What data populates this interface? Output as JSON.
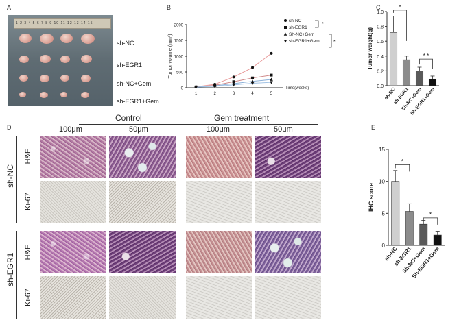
{
  "panels": {
    "A": "A",
    "B": "B",
    "C": "C",
    "D": "D",
    "E": "E"
  },
  "photo": {
    "ruler_text": "1 2 3 4 5 6 7 8 9 10 11 12 13 14 15",
    "labels": [
      "sh-NC",
      "sh-EGR1",
      "sh-NC+Gem",
      "sh-EGR1+Gem"
    ]
  },
  "chart_b": {
    "type": "line",
    "ylabel": "Tumor volume (mm³)",
    "xlabel": "Time(weeks)",
    "x": [
      1,
      2,
      3,
      4,
      5
    ],
    "ylim": [
      0,
      2000
    ],
    "yticks": [
      "0",
      "500",
      "1000",
      "1500",
      "2000"
    ],
    "series": [
      {
        "name": "sh-NC",
        "values": [
          30,
          110,
          340,
          640,
          1090
        ],
        "color": "#e89a9a",
        "marker": "circle"
      },
      {
        "name": "sh-EGR1",
        "values": [
          25,
          80,
          190,
          310,
          400
        ],
        "color": "#d08b8b",
        "marker": "square"
      },
      {
        "name": "Sh-NC+Gem",
        "values": [
          20,
          60,
          130,
          200,
          260
        ],
        "color": "#8ab0d8",
        "marker": "triangle"
      },
      {
        "name": "sh-EGR1+Gem",
        "values": [
          15,
          45,
          90,
          140,
          170
        ],
        "color": "#a3c4e6",
        "marker": "triangle-down"
      }
    ],
    "sig": [
      "*",
      "*"
    ]
  },
  "chart_c": {
    "type": "bar",
    "ylabel": "Tumor weight(g)",
    "categories": [
      "sh-NC",
      "sh-EGR1",
      "Sh-NC+Gem",
      "Sh-EGR1+Gem"
    ],
    "values": [
      0.72,
      0.35,
      0.2,
      0.09
    ],
    "errors": [
      0.22,
      0.05,
      0.05,
      0.04
    ],
    "ylim": [
      0,
      1.0
    ],
    "yticks": [
      "0.0",
      "0.2",
      "0.4",
      "0.6",
      "0.8",
      "1.0"
    ],
    "colors": [
      "#cfcfcf",
      "#8c8c8c",
      "#5a5a5a",
      "#111111"
    ],
    "sig": [
      "*",
      "* *"
    ]
  },
  "histology": {
    "control": "Control",
    "gem": "Gem treatment",
    "scale1": "100μm",
    "scale2": "50μm",
    "groups": [
      "sh-NC",
      "sh-EGR1"
    ],
    "stains": [
      "H&E",
      "Ki-67"
    ]
  },
  "chart_e": {
    "type": "bar",
    "ylabel": "IHC score",
    "categories": [
      "sh-NC",
      "sh-EGR1",
      "Sh-NC+Gem",
      "Sh-EGR1+Gem"
    ],
    "values": [
      10.0,
      5.3,
      3.3,
      1.6
    ],
    "errors": [
      1.7,
      1.2,
      0.6,
      0.6
    ],
    "ylim": [
      0,
      15
    ],
    "yticks": [
      "0",
      "5",
      "10",
      "15"
    ],
    "colors": [
      "#cfcfcf",
      "#8c8c8c",
      "#5a5a5a",
      "#111111"
    ],
    "sig": [
      "*",
      "*"
    ]
  }
}
